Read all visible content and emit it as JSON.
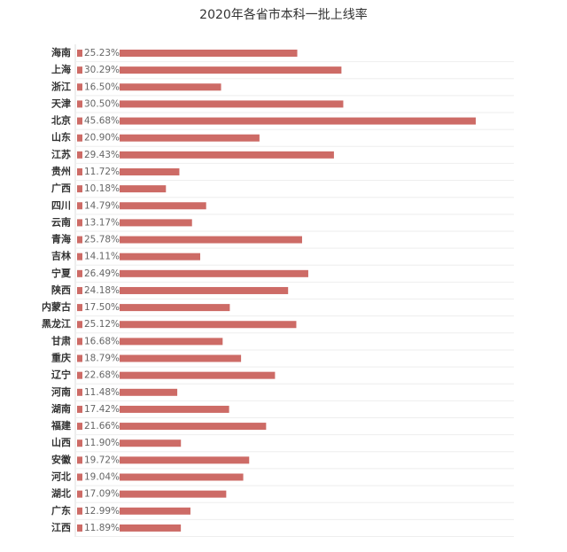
{
  "chart_data": {
    "type": "hbar",
    "title": "2020年各省市本科一批上线率",
    "categories": [
      "海南",
      "上海",
      "浙江",
      "天津",
      "北京",
      "山东",
      "江苏",
      "贵州",
      "广西",
      "四川",
      "云南",
      "青海",
      "吉林",
      "宁夏",
      "陕西",
      "内蒙古",
      "黑龙江",
      "甘肃",
      "重庆",
      "辽宁",
      "河南",
      "湖南",
      "福建",
      "山西",
      "安徽",
      "河北",
      "湖北",
      "广东",
      "江西"
    ],
    "values": [
      25.23,
      30.29,
      16.5,
      30.5,
      45.68,
      20.9,
      29.43,
      11.72,
      10.18,
      14.79,
      13.17,
      25.78,
      14.11,
      26.49,
      24.18,
      17.5,
      25.12,
      16.68,
      18.79,
      22.68,
      11.48,
      17.42,
      21.66,
      11.9,
      19.72,
      19.04,
      17.09,
      12.99,
      11.89
    ],
    "value_labels": [
      "25.23%",
      "30.29%",
      "16.50%",
      "30.50%",
      "45.68%",
      "20.90%",
      "29.43%",
      "11.72%",
      "10.18%",
      "14.79%",
      "13.17%",
      "25.78%",
      "14.11%",
      "26.49%",
      "24.18%",
      "17.50%",
      "25.12%",
      "16.68%",
      "18.79%",
      "22.68%",
      "11.48%",
      "17.42%",
      "21.66%",
      "11.90%",
      "19.72%",
      "19.04%",
      "17.09%",
      "12.99%",
      "11.89%"
    ],
    "color": "#cd6b66"
  }
}
